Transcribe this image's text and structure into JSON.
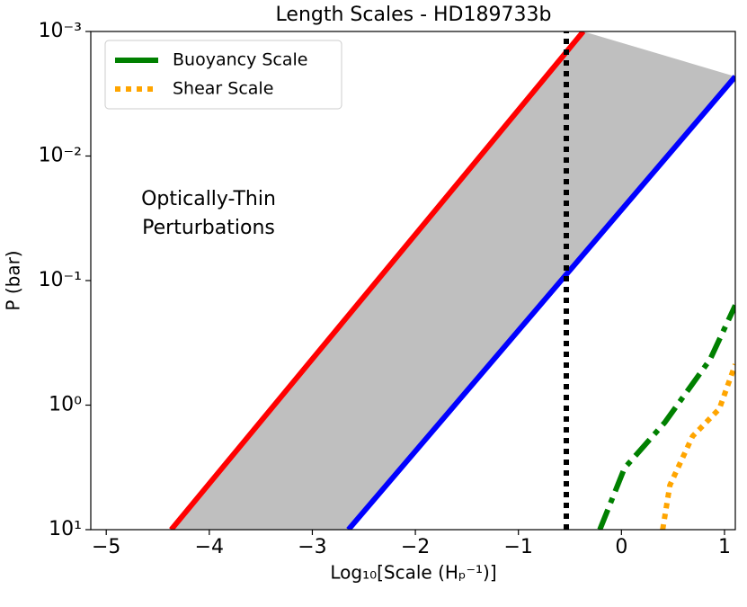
{
  "chart_data": {
    "type": "line",
    "title": "Length Scales - HD189733b",
    "x_label": "Log₁₀[Scale (Hₚ⁻¹)]",
    "y_label": "P (bar)",
    "annotation": [
      "Optically-Thin",
      "Perturbations"
    ],
    "log_y": true,
    "y_inverted": true,
    "legend": "upper left",
    "fill_between": [
      0,
      1
    ],
    "fill_color": "#bfbfbf",
    "xlim": [
      -5.15,
      1.105
    ],
    "ylim": [
      10,
      0.001
    ],
    "xticks": [
      {
        "value": -5,
        "label": "−5"
      },
      {
        "value": -4,
        "label": "−4"
      },
      {
        "value": -3,
        "label": "−3"
      },
      {
        "value": -2,
        "label": "−2"
      },
      {
        "value": -1,
        "label": "−1"
      },
      0,
      1
    ],
    "yticks": [
      {
        "value": 0.001,
        "label": "10⁻³"
      },
      {
        "value": 0.01,
        "label": "10⁻²"
      },
      {
        "value": 0.1,
        "label": "10⁻¹"
      },
      {
        "value": 1,
        "label": "10⁰"
      },
      {
        "value": 10,
        "label": "10¹"
      }
    ],
    "series": [
      {
        "color": "#ff0000",
        "dash": "solid",
        "x": [
          -4.37,
          -0.37
        ],
        "values": [
          10,
          0.001
        ]
      },
      {
        "color": "#0000ff",
        "dash": "solid",
        "x": [
          -2.65,
          1.105
        ],
        "values": [
          10,
          0.0023
        ]
      },
      {
        "color": "#000000",
        "dash": "dotted",
        "x": [
          -0.535,
          -0.535
        ],
        "values": [
          10,
          0.001
        ]
      },
      {
        "name": "Buoyancy Scale",
        "color": "#008000",
        "dash": "dashdot",
        "x": [
          -0.21,
          0.03,
          0.42,
          0.86,
          1.105
        ],
        "values": [
          10,
          3.2,
          1.38,
          0.43,
          0.158
        ]
      },
      {
        "name": "Shear Scale",
        "color": "#ffa500",
        "dash": "dotted",
        "x": [
          0.4,
          0.47,
          0.69,
          0.95,
          1.105
        ],
        "values": [
          10,
          4.4,
          1.78,
          1.07,
          0.47
        ]
      }
    ]
  }
}
